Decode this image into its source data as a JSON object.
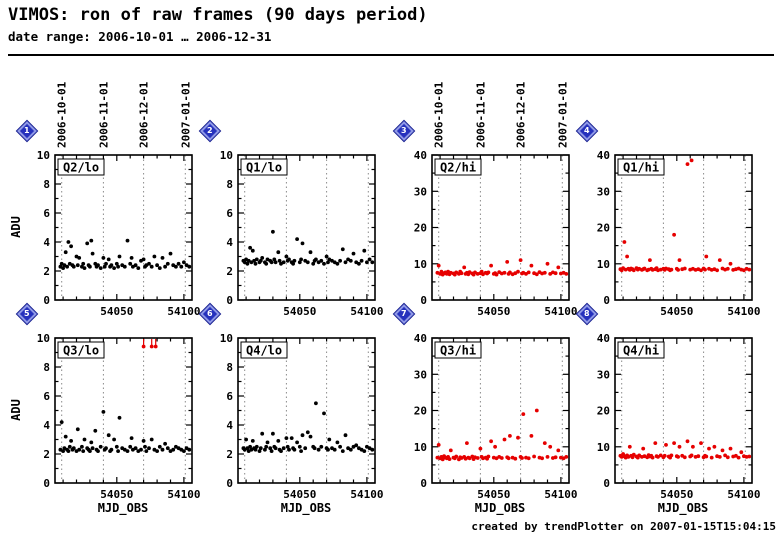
{
  "header": {
    "title": "VIMOS: ron of raw frames (90 days period)",
    "subtitle": "date range: 2006-10-01 … 2006-12-31"
  },
  "footer": {
    "credit": "created by trendPlotter on 2007-01-15T15:04:15"
  },
  "chart_data": {
    "type": "scatter",
    "x_label": "MJD_OBS",
    "y_label": "ADU",
    "x_range": [
      54004,
      54106
    ],
    "x_ticks_labeled": [
      54050,
      54100
    ],
    "x_minor_step": 10,
    "grid": "vertical-dotted-month-lines",
    "overflow_color": "#e60000",
    "date_marks": [
      {
        "mjd": 54009,
        "label": "2006-10-01"
      },
      {
        "mjd": 54040,
        "label": "2006-11-01"
      },
      {
        "mjd": 54070,
        "label": "2006-12-01"
      },
      {
        "mjd": 54101,
        "label": "2007-01-01"
      }
    ],
    "x": [
      54008,
      54009,
      54010,
      54011,
      54012,
      54013,
      54014,
      54015,
      54016,
      54017,
      54018,
      54020,
      54021,
      54022,
      54024,
      54025,
      54026,
      54028,
      54029,
      54030,
      54031,
      54032,
      54034,
      54035,
      54036,
      54038,
      54040,
      54041,
      54042,
      54044,
      54045,
      54046,
      54048,
      54050,
      54051,
      54052,
      54054,
      54056,
      54058,
      54060,
      54061,
      54062,
      54064,
      54066,
      54068,
      54070,
      54071,
      54072,
      54074,
      54076,
      54078,
      54080,
      54082,
      54084,
      54086,
      54088,
      54090,
      54092,
      54094,
      54096,
      54098,
      54100,
      54102,
      54104
    ],
    "panels": [
      {
        "id": 1,
        "label": "Q2/lo",
        "mode": "lo",
        "color": "#000000",
        "ylim": [
          0,
          10
        ],
        "y_ticks": [
          0,
          2,
          4,
          6,
          8,
          10
        ],
        "show_top_dates": true,
        "y": [
          2.3,
          2.5,
          2.2,
          2.4,
          3.3,
          2.3,
          4.0,
          2.5,
          3.7,
          2.4,
          2.3,
          3.0,
          2.4,
          2.9,
          2.3,
          2.5,
          2.2,
          3.9,
          2.4,
          2.3,
          4.1,
          3.2,
          2.5,
          2.3,
          2.4,
          2.2,
          2.9,
          2.3,
          2.5,
          2.8,
          2.3,
          2.4,
          2.2,
          2.5,
          2.3,
          3.0,
          2.4,
          2.3,
          4.1,
          2.5,
          2.9,
          2.3,
          2.4,
          2.2,
          2.7,
          2.8,
          2.3,
          2.4,
          2.5,
          2.3,
          3.0,
          2.4,
          2.2,
          2.9,
          2.3,
          2.5,
          3.2,
          2.4,
          2.3,
          2.5,
          2.3,
          2.6,
          2.4,
          2.3
        ]
      },
      {
        "id": 2,
        "label": "Q1/lo",
        "mode": "lo",
        "color": "#000000",
        "ylim": [
          0,
          10
        ],
        "y_ticks": [
          0,
          2,
          4,
          6,
          8,
          10
        ],
        "show_top_dates": false,
        "y": [
          2.7,
          2.6,
          2.8,
          2.5,
          2.7,
          3.6,
          2.6,
          3.4,
          2.7,
          2.5,
          2.8,
          2.6,
          2.7,
          2.9,
          2.6,
          2.5,
          2.8,
          2.7,
          2.6,
          4.7,
          2.8,
          2.6,
          3.3,
          2.7,
          2.5,
          2.6,
          3.0,
          2.7,
          2.8,
          2.6,
          2.5,
          2.7,
          4.2,
          2.6,
          2.8,
          3.9,
          2.7,
          2.6,
          3.3,
          2.5,
          2.7,
          2.8,
          2.6,
          2.7,
          2.5,
          3.0,
          2.6,
          2.8,
          2.7,
          2.6,
          2.5,
          2.7,
          3.5,
          2.6,
          2.8,
          2.7,
          3.2,
          2.6,
          2.5,
          2.7,
          3.4,
          2.6,
          2.8,
          2.6
        ]
      },
      {
        "id": 3,
        "label": "Q2/hi",
        "mode": "hi",
        "color": "#e60000",
        "ylim": [
          0,
          40
        ],
        "y_ticks": [
          0,
          10,
          20,
          30,
          40
        ],
        "show_top_dates": true,
        "y": [
          7.5,
          9.5,
          7.2,
          7.8,
          7.0,
          7.4,
          7.6,
          7.2,
          7.8,
          7.1,
          7.5,
          7.3,
          7.0,
          7.6,
          7.2,
          7.8,
          7.4,
          9.0,
          7.2,
          7.5,
          7.1,
          7.7,
          7.3,
          7.0,
          7.6,
          7.2,
          7.4,
          7.8,
          7.1,
          7.5,
          7.3,
          7.6,
          9.5,
          7.2,
          7.4,
          7.0,
          7.7,
          7.3,
          7.5,
          10.5,
          7.2,
          7.6,
          7.1,
          7.4,
          7.8,
          11.0,
          7.3,
          7.5,
          7.2,
          7.6,
          9.5,
          7.4,
          7.1,
          7.7,
          7.3,
          7.5,
          10.0,
          7.2,
          7.6,
          7.4,
          9.0,
          7.3,
          7.5,
          7.2
        ]
      },
      {
        "id": 4,
        "label": "Q1/hi",
        "mode": "hi",
        "color": "#e60000",
        "ylim": [
          0,
          40
        ],
        "y_ticks": [
          0,
          10,
          20,
          30,
          40
        ],
        "show_top_dates": false,
        "y": [
          8.5,
          8.2,
          8.8,
          16.0,
          8.4,
          12.0,
          8.6,
          8.3,
          8.7,
          8.5,
          8.2,
          8.8,
          8.4,
          8.6,
          8.3,
          8.5,
          8.7,
          8.2,
          8.4,
          11.0,
          8.6,
          8.3,
          8.5,
          8.8,
          8.2,
          8.4,
          8.6,
          8.3,
          8.7,
          8.5,
          8.2,
          8.4,
          18.0,
          8.6,
          8.3,
          11.0,
          8.5,
          8.7,
          37.5,
          8.4,
          38.5,
          8.6,
          8.3,
          8.5,
          8.2,
          8.7,
          8.4,
          12.0,
          8.6,
          8.3,
          8.5,
          8.2,
          11.0,
          8.7,
          8.4,
          8.6,
          10.0,
          8.3,
          8.5,
          8.7,
          8.4,
          8.2,
          8.6,
          8.4
        ]
      },
      {
        "id": 5,
        "label": "Q3/lo",
        "mode": "lo",
        "color": "#000000",
        "ylim": [
          0,
          10
        ],
        "y_ticks": [
          0,
          2,
          4,
          6,
          8,
          10
        ],
        "show_top_dates": false,
        "overflow_x": [
          54070,
          54076,
          54079
        ],
        "y": [
          2.3,
          4.2,
          2.2,
          2.4,
          3.2,
          2.3,
          2.2,
          2.5,
          2.9,
          2.3,
          2.4,
          2.2,
          3.7,
          2.3,
          2.5,
          2.2,
          3.0,
          2.4,
          2.3,
          2.2,
          2.8,
          2.4,
          3.6,
          2.3,
          2.2,
          2.5,
          4.9,
          2.3,
          2.4,
          3.3,
          2.2,
          2.3,
          3.0,
          2.5,
          2.2,
          4.5,
          2.4,
          2.3,
          2.2,
          2.5,
          3.1,
          2.3,
          2.4,
          2.2,
          2.3,
          2.9,
          2.5,
          2.2,
          2.4,
          3.0,
          2.3,
          2.2,
          2.5,
          2.3,
          2.7,
          2.4,
          2.2,
          2.3,
          2.5,
          2.4,
          2.3,
          2.2,
          2.4,
          2.3
        ]
      },
      {
        "id": 6,
        "label": "Q4/lo",
        "mode": "lo",
        "color": "#000000",
        "ylim": [
          0,
          10
        ],
        "y_ticks": [
          0,
          2,
          4,
          6,
          8,
          10
        ],
        "show_top_dates": false,
        "y": [
          2.4,
          2.3,
          3.0,
          2.4,
          2.2,
          2.5,
          2.3,
          2.9,
          2.4,
          2.3,
          2.5,
          2.2,
          2.4,
          3.4,
          2.3,
          2.5,
          2.8,
          2.4,
          2.2,
          3.4,
          2.5,
          2.4,
          2.9,
          2.3,
          2.2,
          2.4,
          3.1,
          2.5,
          2.3,
          3.1,
          2.4,
          2.3,
          2.8,
          2.5,
          2.2,
          3.3,
          2.4,
          3.5,
          3.2,
          2.5,
          2.4,
          5.5,
          2.3,
          2.5,
          4.8,
          2.4,
          2.3,
          3.0,
          2.4,
          2.3,
          2.8,
          2.5,
          2.2,
          3.3,
          2.4,
          2.3,
          2.5,
          2.6,
          2.4,
          2.3,
          2.2,
          2.5,
          2.4,
          2.3
        ]
      },
      {
        "id": 7,
        "label": "Q3/hi",
        "mode": "hi",
        "color": "#e60000",
        "ylim": [
          0,
          40
        ],
        "y_ticks": [
          0,
          10,
          20,
          30,
          40
        ],
        "show_top_dates": false,
        "y": [
          7.0,
          10.5,
          6.8,
          7.2,
          6.5,
          7.4,
          7.0,
          6.8,
          7.2,
          6.6,
          9.0,
          7.0,
          6.8,
          7.3,
          6.5,
          7.1,
          6.9,
          7.2,
          6.7,
          11.0,
          7.0,
          6.8,
          7.3,
          6.6,
          7.1,
          6.9,
          9.5,
          7.2,
          6.8,
          7.0,
          6.7,
          7.3,
          11.5,
          7.0,
          10.0,
          6.8,
          7.2,
          6.9,
          12.0,
          7.1,
          6.8,
          13.0,
          7.0,
          6.7,
          12.5,
          7.2,
          6.9,
          19.0,
          7.0,
          6.8,
          13.0,
          7.3,
          20.0,
          7.0,
          6.8,
          11.0,
          7.2,
          10.0,
          6.9,
          7.1,
          9.0,
          7.0,
          6.8,
          7.2
        ]
      },
      {
        "id": 8,
        "label": "Q4/hi",
        "mode": "hi",
        "color": "#e60000",
        "ylim": [
          0,
          40
        ],
        "y_ticks": [
          0,
          10,
          20,
          30,
          40
        ],
        "show_top_dates": false,
        "y": [
          7.5,
          7.2,
          8.0,
          7.4,
          7.0,
          7.6,
          7.2,
          10.0,
          7.5,
          7.1,
          7.8,
          7.3,
          7.0,
          7.6,
          7.2,
          9.5,
          7.4,
          7.1,
          7.7,
          7.3,
          7.5,
          7.0,
          11.0,
          7.4,
          7.2,
          7.6,
          7.1,
          7.5,
          10.5,
          7.3,
          7.0,
          7.6,
          11.0,
          7.4,
          7.2,
          10.0,
          7.5,
          7.1,
          11.5,
          7.3,
          7.6,
          10.0,
          7.2,
          7.4,
          11.0,
          7.1,
          7.5,
          7.3,
          9.5,
          7.0,
          10.0,
          7.4,
          7.2,
          9.0,
          7.6,
          7.1,
          9.5,
          7.3,
          7.5,
          7.0,
          8.5,
          7.4,
          7.2,
          7.3
        ]
      }
    ]
  },
  "badge_numbers": [
    1,
    2,
    3,
    4,
    5,
    6,
    7,
    8
  ]
}
